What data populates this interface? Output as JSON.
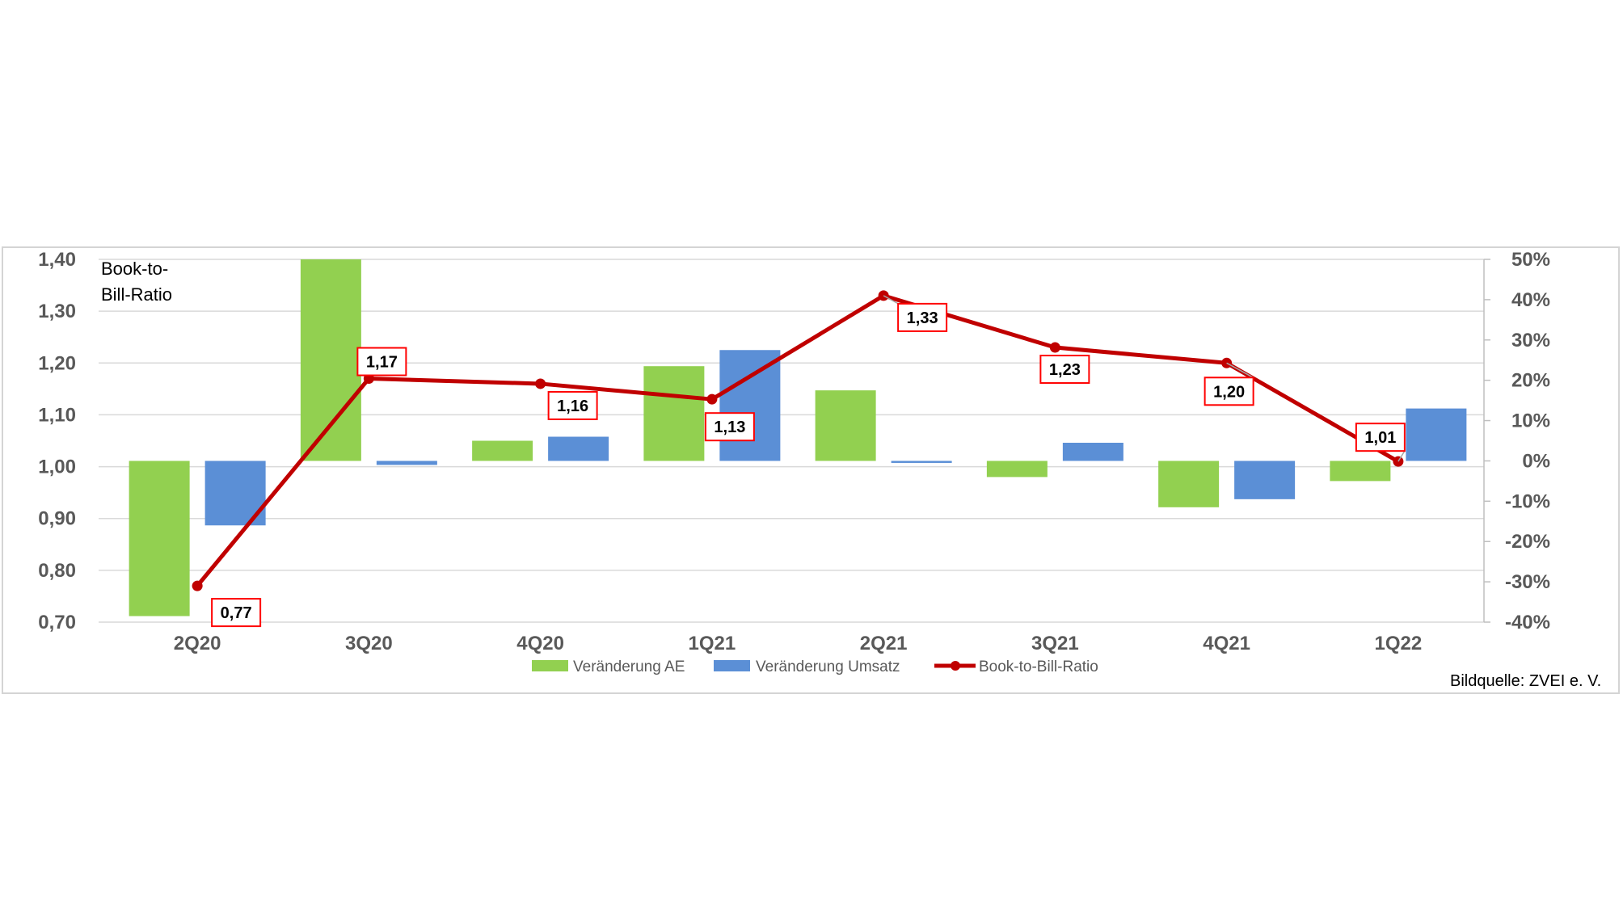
{
  "chart_data": {
    "type": "bar",
    "title": "",
    "ylabel": "Book-to-Bill-Ratio",
    "categories": [
      "2Q20",
      "3Q20",
      "4Q20",
      "1Q21",
      "2Q21",
      "3Q21",
      "4Q21",
      "1Q22"
    ],
    "series": [
      {
        "name": "Veränderung AE",
        "type": "bar",
        "axis": "right",
        "color": "#92d050",
        "values": [
          -38.5,
          50.0,
          5.0,
          23.5,
          17.5,
          -4.0,
          -11.5,
          -5.0
        ]
      },
      {
        "name": "Veränderung Umsatz",
        "type": "bar",
        "axis": "right",
        "color": "#5b8fd6",
        "values": [
          -16.0,
          -1.0,
          6.0,
          27.5,
          -0.5,
          4.5,
          -9.5,
          13.0
        ]
      },
      {
        "name": "Book-to-Bill-Ratio",
        "type": "line",
        "axis": "left",
        "color": "#c00000",
        "values": [
          0.77,
          1.17,
          1.16,
          1.13,
          1.33,
          1.23,
          1.2,
          1.01
        ],
        "labels": [
          "0,77",
          "1,17",
          "1,16",
          "1,13",
          "1,33",
          "1,23",
          "1,20",
          "1,01"
        ]
      }
    ],
    "y_left": {
      "ylim": [
        0.7,
        1.4
      ],
      "ticks": [
        "0,70",
        "0,80",
        "0,90",
        "1,00",
        "1,10",
        "1,20",
        "1,30",
        "1,40"
      ]
    },
    "y_right": {
      "ylim": [
        -40,
        50
      ],
      "ticks": [
        "-40%",
        "-30%",
        "-20%",
        "-10%",
        "0%",
        "10%",
        "20%",
        "30%",
        "40%",
        "50%"
      ]
    },
    "grid": true,
    "legend_position": "bottom"
  },
  "legend": [
    "Veränderung AE",
    "Veränderung Umsatz",
    "Book-to-Bill-Ratio"
  ],
  "yaxis_title_lines": [
    "Book-to-",
    "Bill-Ratio"
  ],
  "source": "Bildquelle: ZVEI e. V."
}
